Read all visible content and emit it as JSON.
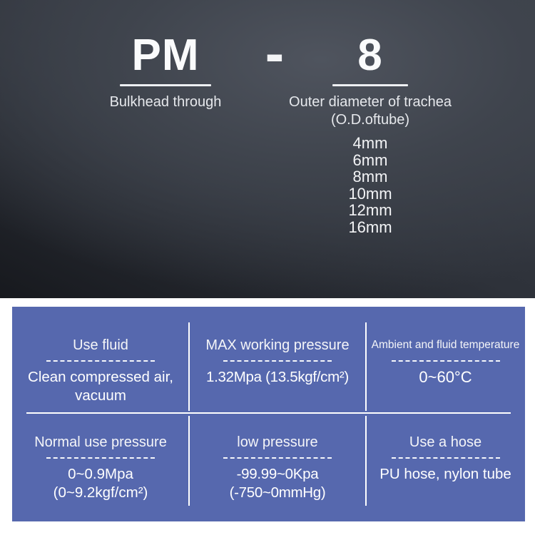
{
  "hero": {
    "model_prefix": "PM",
    "separator": "-",
    "model_size": "8",
    "prefix_label": "Bulkhead through",
    "size_label_line1": "Outer diameter of trachea",
    "size_label_line2": "(O.D.oftube)",
    "size_options": [
      "4mm",
      "6mm",
      "8mm",
      "10mm",
      "12mm",
      "16mm"
    ]
  },
  "spec_table": {
    "accent_color": "#5668ae",
    "line_color": "#ffffff",
    "rows": [
      [
        {
          "label": "Use fluid",
          "value": "Clean compressed air, vacuum"
        },
        {
          "label": "MAX working pressure",
          "value": "1.32Mpa (13.5kgf/cm²)"
        },
        {
          "label": "Ambient and fluid temperature",
          "value": "0~60°C"
        }
      ],
      [
        {
          "label": "Normal use pressure",
          "value": "0~0.9Mpa (0~9.2kgf/cm²)"
        },
        {
          "label": "low pressure",
          "value": "-99.99~0Kpa (-750~0mmHg)"
        },
        {
          "label": "Use a hose",
          "value": "PU hose, nylon tube"
        }
      ]
    ]
  }
}
